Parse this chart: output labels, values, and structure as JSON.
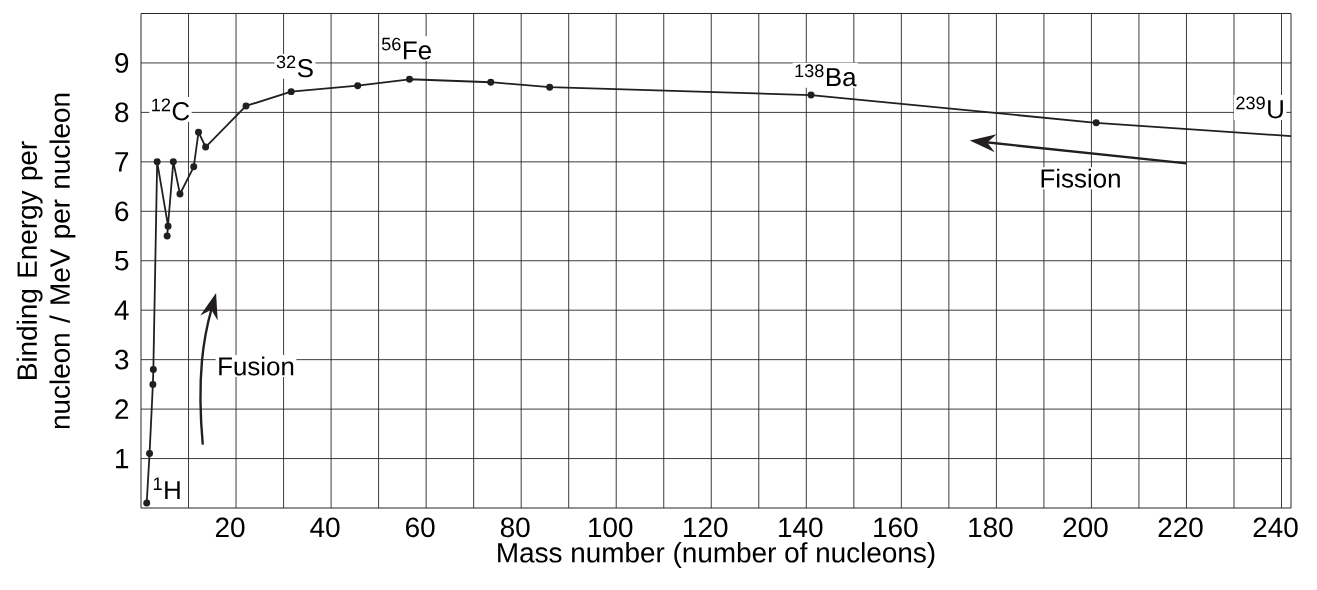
{
  "chart_data": {
    "type": "line",
    "xlabel": "Mass number (number of nucleons)",
    "ylabel": "Binding Energy per nucleon / MeV per nucleon",
    "xlim": [
      0,
      242
    ],
    "ylim": [
      0,
      10
    ],
    "xticks": [
      {
        "value": 10,
        "label": null
      },
      20,
      {
        "value": 30,
        "label": null
      },
      40,
      {
        "value": 50,
        "label": null
      },
      60,
      {
        "value": 70,
        "label": null
      },
      80,
      {
        "value": 90,
        "label": null
      },
      100,
      {
        "value": 110,
        "label": null
      },
      120,
      {
        "value": 130,
        "label": null
      },
      140,
      {
        "value": 150,
        "label": null
      },
      160,
      {
        "value": 170,
        "label": null
      },
      180,
      {
        "value": 190,
        "label": null
      },
      200,
      {
        "value": 210,
        "label": null
      },
      220,
      {
        "value": 230,
        "label": null
      },
      240
    ],
    "yticks": [
      1,
      2,
      3,
      4,
      5,
      6,
      7,
      8,
      9
    ],
    "grid": true,
    "marker": "circle",
    "line_style": "solid",
    "series": [
      {
        "color": "#231f20",
        "x": [
          1.2,
          1.8,
          2.5,
          2.6,
          3.4,
          5.7,
          5.5,
          6.8,
          8.2,
          11.1,
          12.1,
          13.6,
          22.1,
          31.6,
          45.6,
          56.5,
          73.6,
          86.0,
          141,
          201
        ],
        "values": [
          0.1,
          1.1,
          2.5,
          2.8,
          7.0,
          5.7,
          5.5,
          7.0,
          6.35,
          6.9,
          7.6,
          7.3,
          8.13,
          8.42,
          8.54,
          8.67,
          8.61,
          8.51,
          8.35,
          7.79
        ]
      },
      {
        "color": "#231f20",
        "marker": "none",
        "x": [
          201,
          242
        ],
        "values": [
          7.79,
          7.52
        ]
      }
    ],
    "annotations": [
      "$^{1}$H",
      "$^{12}$C",
      "$^{32}$S",
      "$^{56}$Fe",
      "$^{138}$Ba",
      "$^{239}$U",
      "Fusion",
      "Fission"
    ]
  }
}
